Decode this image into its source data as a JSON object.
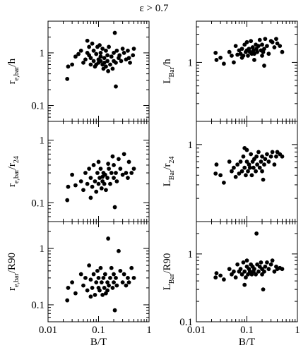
{
  "figure_title": "ε > 0.7",
  "chart_data": [
    {
      "type": "scatter",
      "id": "p-reh",
      "ylabel": {
        "main": "r",
        "sub": "e,bar",
        "tail": "/h"
      },
      "xlabel": "",
      "xscale": "log",
      "yscale": "log",
      "xlim": [
        0.01,
        1
      ],
      "ylim": [
        0.05,
        4
      ],
      "xticks": [
        {
          "v": 0.01,
          "label": ""
        },
        {
          "v": 0.1,
          "label": ""
        },
        {
          "v": 1,
          "label": ""
        }
      ],
      "yticks": [
        {
          "v": 0.1,
          "label": "0.1"
        },
        {
          "v": 1,
          "label": "1"
        }
      ],
      "x": [
        0.024,
        0.025,
        0.03,
        0.035,
        0.04,
        0.045,
        0.05,
        0.055,
        0.06,
        0.065,
        0.065,
        0.07,
        0.07,
        0.075,
        0.08,
        0.08,
        0.085,
        0.09,
        0.09,
        0.095,
        0.1,
        0.1,
        0.105,
        0.11,
        0.11,
        0.12,
        0.12,
        0.125,
        0.13,
        0.13,
        0.14,
        0.14,
        0.15,
        0.15,
        0.155,
        0.16,
        0.17,
        0.18,
        0.19,
        0.2,
        0.2,
        0.21,
        0.22,
        0.22,
        0.23,
        0.25,
        0.26,
        0.28,
        0.3,
        0.32,
        0.35,
        0.38,
        0.4,
        0.42,
        0.48,
        0.5,
        0.06,
        0.11
      ],
      "y": [
        0.32,
        0.55,
        0.6,
        0.85,
        0.95,
        1.1,
        0.65,
        0.75,
        1.7,
        0.9,
        1.3,
        0.8,
        0.6,
        1.5,
        0.7,
        1.1,
        0.55,
        0.95,
        0.6,
        1.3,
        0.75,
        0.65,
        1.4,
        0.7,
        1.0,
        0.6,
        1.2,
        0.5,
        0.8,
        0.65,
        1.1,
        0.55,
        0.7,
        0.9,
        0.45,
        1.3,
        0.6,
        0.85,
        0.5,
        1.0,
        0.7,
        2.4,
        0.65,
        0.23,
        1.1,
        0.8,
        0.9,
        0.7,
        1.2,
        1.0,
        0.75,
        1.1,
        0.8,
        0.65,
        0.9,
        1.2,
        1.0,
        0.85
      ]
    },
    {
      "type": "scatter",
      "id": "p-Lh",
      "ylabel": {
        "main": "L",
        "sub": "Bar",
        "tail": "/h"
      },
      "xlabel": "",
      "xscale": "log",
      "yscale": "log",
      "xlim": [
        0.01,
        1
      ],
      "ylim": [
        0.1,
        5
      ],
      "xticks": [
        {
          "v": 0.01,
          "label": ""
        },
        {
          "v": 0.1,
          "label": ""
        },
        {
          "v": 1,
          "label": ""
        }
      ],
      "yticks": [
        {
          "v": 1,
          "label": "1"
        }
      ],
      "x": [
        0.024,
        0.025,
        0.03,
        0.035,
        0.045,
        0.05,
        0.055,
        0.06,
        0.065,
        0.07,
        0.075,
        0.08,
        0.085,
        0.09,
        0.095,
        0.1,
        0.1,
        0.105,
        0.11,
        0.115,
        0.12,
        0.125,
        0.13,
        0.135,
        0.14,
        0.15,
        0.155,
        0.16,
        0.17,
        0.18,
        0.19,
        0.2,
        0.2,
        0.21,
        0.22,
        0.22,
        0.23,
        0.25,
        0.27,
        0.3,
        0.32,
        0.35,
        0.38,
        0.4,
        0.45,
        0.5,
        0.08,
        0.14
      ],
      "y": [
        1.45,
        1.1,
        1.2,
        0.95,
        1.5,
        1.3,
        1.0,
        1.9,
        1.35,
        1.6,
        1.4,
        1.7,
        1.3,
        2.0,
        1.5,
        1.6,
        2.2,
        1.3,
        1.7,
        1.5,
        2.3,
        1.4,
        1.8,
        1.6,
        1.4,
        2.0,
        1.7,
        1.5,
        1.9,
        2.4,
        1.6,
        1.3,
        2.0,
        1.5,
        0.88,
        1.7,
        2.5,
        1.9,
        1.4,
        2.3,
        2.2,
        1.8,
        2.5,
        2.1,
        1.9,
        1.5,
        1.2,
        1.1
      ]
    },
    {
      "type": "scatter",
      "id": "p-rer24",
      "ylabel": {
        "main": "r",
        "sub": "e,bar",
        "tail": "/r",
        "tailsub": "24"
      },
      "xlabel": "",
      "xscale": "log",
      "yscale": "log",
      "xlim": [
        0.01,
        1
      ],
      "ylim": [
        0.05,
        2
      ],
      "xticks": [
        {
          "v": 0.01,
          "label": ""
        },
        {
          "v": 0.1,
          "label": ""
        },
        {
          "v": 1,
          "label": ""
        }
      ],
      "yticks": [
        {
          "v": 0.1,
          "label": "0.1"
        },
        {
          "v": 1,
          "label": "1"
        }
      ],
      "x": [
        0.024,
        0.025,
        0.03,
        0.035,
        0.045,
        0.05,
        0.055,
        0.06,
        0.065,
        0.07,
        0.075,
        0.08,
        0.085,
        0.09,
        0.095,
        0.1,
        0.1,
        0.105,
        0.11,
        0.115,
        0.12,
        0.125,
        0.13,
        0.135,
        0.14,
        0.15,
        0.155,
        0.16,
        0.17,
        0.18,
        0.19,
        0.2,
        0.2,
        0.21,
        0.22,
        0.23,
        0.25,
        0.27,
        0.3,
        0.32,
        0.35,
        0.38,
        0.4,
        0.45,
        0.5,
        0.07,
        0.12
      ],
      "y": [
        0.11,
        0.18,
        0.28,
        0.19,
        0.22,
        0.16,
        0.3,
        0.2,
        0.35,
        0.25,
        0.18,
        0.4,
        0.22,
        0.15,
        0.3,
        0.2,
        0.45,
        0.25,
        0.35,
        0.17,
        0.22,
        0.3,
        0.2,
        0.28,
        0.16,
        0.25,
        0.42,
        0.35,
        0.2,
        0.3,
        0.55,
        0.25,
        0.4,
        0.085,
        0.3,
        0.22,
        0.5,
        0.35,
        0.28,
        0.6,
        0.3,
        0.25,
        0.45,
        0.3,
        0.35,
        0.12,
        0.26
      ]
    },
    {
      "type": "scatter",
      "id": "p-Lr24",
      "ylabel": {
        "main": "L",
        "sub": "Bar",
        "tail": "/r",
        "tailsub": "24"
      },
      "xlabel": "",
      "xscale": "log",
      "yscale": "log",
      "xlim": [
        0.01,
        1
      ],
      "ylim": [
        0.1,
        2
      ],
      "xticks": [
        {
          "v": 0.01,
          "label": ""
        },
        {
          "v": 0.1,
          "label": ""
        },
        {
          "v": 1,
          "label": ""
        }
      ],
      "yticks": [
        {
          "v": 1,
          "label": "1"
        }
      ],
      "x": [
        0.024,
        0.025,
        0.03,
        0.035,
        0.045,
        0.05,
        0.055,
        0.06,
        0.065,
        0.07,
        0.075,
        0.08,
        0.085,
        0.09,
        0.095,
        0.1,
        0.1,
        0.105,
        0.11,
        0.115,
        0.12,
        0.125,
        0.13,
        0.135,
        0.14,
        0.15,
        0.155,
        0.16,
        0.17,
        0.18,
        0.19,
        0.2,
        0.2,
        0.21,
        0.22,
        0.23,
        0.25,
        0.27,
        0.3,
        0.32,
        0.35,
        0.38,
        0.4,
        0.45,
        0.5,
        0.09
      ],
      "y": [
        0.42,
        0.55,
        0.4,
        0.32,
        0.6,
        0.45,
        0.5,
        0.38,
        0.55,
        0.42,
        0.6,
        0.45,
        0.7,
        0.5,
        0.4,
        0.6,
        0.85,
        0.45,
        0.55,
        0.5,
        0.75,
        0.4,
        0.6,
        0.5,
        0.65,
        0.45,
        0.7,
        0.55,
        0.8,
        0.5,
        0.6,
        0.45,
        0.7,
        0.35,
        0.55,
        0.65,
        0.75,
        0.6,
        0.7,
        0.8,
        0.55,
        0.7,
        0.8,
        0.75,
        0.7,
        0.9
      ]
    },
    {
      "type": "scatter",
      "id": "p-reR90",
      "ylabel": {
        "main": "r",
        "sub": "e,bar",
        "tail": "/R90"
      },
      "xlabel": "B/T",
      "xscale": "log",
      "yscale": "log",
      "xlim": [
        0.01,
        1
      ],
      "ylim": [
        0.05,
        3
      ],
      "xticks": [
        {
          "v": 0.01,
          "label": "0.01"
        },
        {
          "v": 0.1,
          "label": "0.1"
        },
        {
          "v": 1,
          "label": "1"
        }
      ],
      "yticks": [
        {
          "v": 0.1,
          "label": "0.1"
        },
        {
          "v": 1,
          "label": "1"
        }
      ],
      "x": [
        0.024,
        0.025,
        0.03,
        0.035,
        0.045,
        0.05,
        0.055,
        0.06,
        0.065,
        0.07,
        0.075,
        0.08,
        0.085,
        0.09,
        0.095,
        0.1,
        0.1,
        0.105,
        0.11,
        0.115,
        0.12,
        0.125,
        0.13,
        0.135,
        0.14,
        0.15,
        0.155,
        0.16,
        0.17,
        0.18,
        0.19,
        0.2,
        0.2,
        0.21,
        0.22,
        0.23,
        0.25,
        0.27,
        0.3,
        0.32,
        0.35,
        0.38,
        0.4,
        0.45,
        0.5,
        0.07,
        0.15
      ],
      "y": [
        0.12,
        0.2,
        0.25,
        0.16,
        0.35,
        0.22,
        0.3,
        0.18,
        0.5,
        0.28,
        0.2,
        0.35,
        0.15,
        0.25,
        0.4,
        0.2,
        0.3,
        0.18,
        0.45,
        0.25,
        0.15,
        0.3,
        0.2,
        0.35,
        0.16,
        0.25,
        1.5,
        0.22,
        0.3,
        0.45,
        0.2,
        0.35,
        0.25,
        0.08,
        0.3,
        0.22,
        0.9,
        0.4,
        0.25,
        0.35,
        0.22,
        0.3,
        0.25,
        0.45,
        0.3,
        0.14,
        0.18
      ]
    },
    {
      "type": "scatter",
      "id": "p-LR90",
      "ylabel": {
        "main": "L",
        "sub": "Bar",
        "tail": "/R90"
      },
      "xlabel": "B/T",
      "xscale": "log",
      "yscale": "log",
      "xlim": [
        0.01,
        1
      ],
      "ylim": [
        0.1,
        3
      ],
      "xticks": [
        {
          "v": 0.01,
          "label": "0.01"
        },
        {
          "v": 0.1,
          "label": "0.1"
        },
        {
          "v": 1,
          "label": "1"
        }
      ],
      "yticks": [
        {
          "v": 0.1,
          "label": "0.1"
        },
        {
          "v": 1,
          "label": "1"
        }
      ],
      "x": [
        0.024,
        0.025,
        0.03,
        0.035,
        0.045,
        0.05,
        0.055,
        0.06,
        0.065,
        0.07,
        0.075,
        0.08,
        0.085,
        0.09,
        0.095,
        0.1,
        0.1,
        0.105,
        0.11,
        0.115,
        0.12,
        0.125,
        0.13,
        0.135,
        0.14,
        0.15,
        0.155,
        0.16,
        0.17,
        0.18,
        0.19,
        0.2,
        0.2,
        0.21,
        0.22,
        0.23,
        0.25,
        0.27,
        0.3,
        0.32,
        0.35,
        0.38,
        0.4,
        0.45,
        0.5,
        0.09
      ],
      "y": [
        0.45,
        0.52,
        0.48,
        0.42,
        0.6,
        0.5,
        0.55,
        0.45,
        0.7,
        0.55,
        0.6,
        0.5,
        0.75,
        0.55,
        0.45,
        0.65,
        0.8,
        0.5,
        0.6,
        0.55,
        0.7,
        0.5,
        0.65,
        0.55,
        0.6,
        0.5,
        2.0,
        0.7,
        0.55,
        0.65,
        0.75,
        0.5,
        0.6,
        0.3,
        0.55,
        0.65,
        0.75,
        0.6,
        0.7,
        0.8,
        0.55,
        0.65,
        0.6,
        0.62,
        0.6,
        0.35
      ]
    }
  ]
}
